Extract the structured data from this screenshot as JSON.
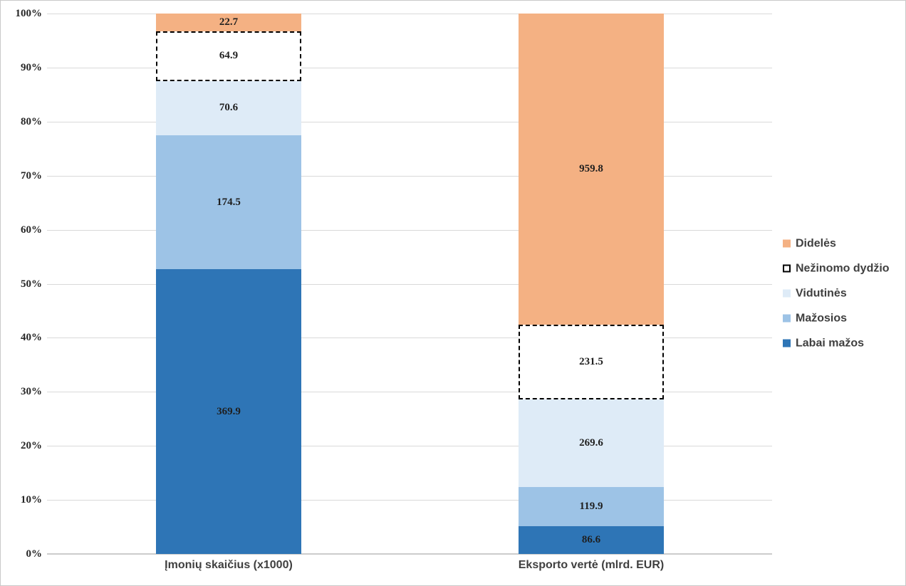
{
  "chart_data": {
    "type": "bar",
    "subtype": "100-percent-stacked-column",
    "title": "",
    "xlabel": "",
    "ylabel": "",
    "categories": [
      "Įmonių skaičius (x1000)",
      "Eksporto vertė (mlrd. EUR)"
    ],
    "series": [
      {
        "name": "Labai mažos",
        "values": [
          369.9,
          86.6
        ],
        "color": "#2E75B6",
        "border": null
      },
      {
        "name": "Mažosios",
        "values": [
          174.5,
          119.9
        ],
        "color": "#9DC3E6",
        "border": null
      },
      {
        "name": "Vidutinės",
        "values": [
          70.6,
          269.6
        ],
        "color": "#DEEBF7",
        "border": null
      },
      {
        "name": "Nežinomo dydžio",
        "values": [
          64.9,
          231.5
        ],
        "color": "#FFFFFF",
        "border": "2px dashed #000000"
      },
      {
        "name": "Didelės",
        "values": [
          22.7,
          959.8
        ],
        "color": "#F4B183",
        "border": null
      }
    ],
    "stack_order": "bottom-to-top",
    "data_labels": true,
    "y_axis": {
      "min": 0,
      "max": 100,
      "ticks": [
        "0%",
        "10%",
        "20%",
        "30%",
        "40%",
        "50%",
        "60%",
        "70%",
        "80%",
        "90%",
        "100%"
      ],
      "grid": true
    },
    "legend": {
      "position": "right",
      "items_top_to_bottom": [
        "Didelės",
        "Nežinomo dydžio",
        "Vidutinės",
        "Mažosios",
        "Labai mažos"
      ]
    },
    "colors": {
      "gridline": "#D9D9D9",
      "axis_line": "#CCCCCC",
      "tick_text": "#262626",
      "label_text": "#1F1F1F",
      "category_text": "#3F3F3F"
    }
  }
}
